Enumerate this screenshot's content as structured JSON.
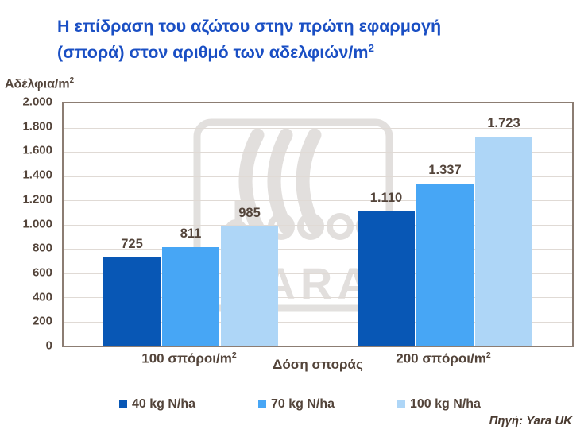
{
  "display": {
    "title": {
      "line1": "Η επίδραση του αζώτου στην πρώτη εφαρμογή",
      "line2": "(σπορά) στον αριθμό των αδελφιών/m",
      "sup": "2"
    },
    "y_axis_label": {
      "text": "Αδέλφια/m",
      "sup": "2"
    },
    "source": "Πηγή: Yara UK",
    "watermark": "YARA"
  },
  "colors": {
    "title": "#1a4fc4",
    "text": "#53443a",
    "plot_border": "#8c7d73",
    "gridline": "#e0dad5",
    "watermark": "#c6c1bd",
    "series": [
      "#0857b5",
      "#47a6f5",
      "#aed6f7"
    ]
  },
  "chart_data": {
    "type": "bar",
    "title": "Η επίδραση του αζώτου στην πρώτη εφαρμογή (σπορά) στον αριθμό των αδελφιών/m²",
    "ylabel": "Αδέλφια/m²",
    "xlabel": "Δόση σποράς",
    "categories": [
      {
        "label": "100 σπόροι/m",
        "sup": "2"
      },
      {
        "label": "200 σπόροι/m",
        "sup": "2"
      }
    ],
    "y_tick_labels": [
      "2.000",
      "1.800",
      "1.600",
      "1.400",
      "1.200",
      "1.000",
      "800",
      "600",
      "400",
      "200",
      "0"
    ],
    "ylim": [
      0,
      2000
    ],
    "grid": true,
    "legend_position": "bottom",
    "series": [
      {
        "name": "40 kg N/ha",
        "color": "#0857b5",
        "values": [
          725,
          1110
        ],
        "value_labels": [
          "725",
          "1.110"
        ]
      },
      {
        "name": "70 kg N/ha",
        "color": "#47a6f5",
        "values": [
          811,
          1337
        ],
        "value_labels": [
          "811",
          "1.337"
        ]
      },
      {
        "name": "100 kg N/ha",
        "color": "#aed6f7",
        "values": [
          985,
          1723
        ],
        "value_labels": [
          "985",
          "1.723"
        ]
      }
    ],
    "source": "Πηγή: Yara UK"
  }
}
